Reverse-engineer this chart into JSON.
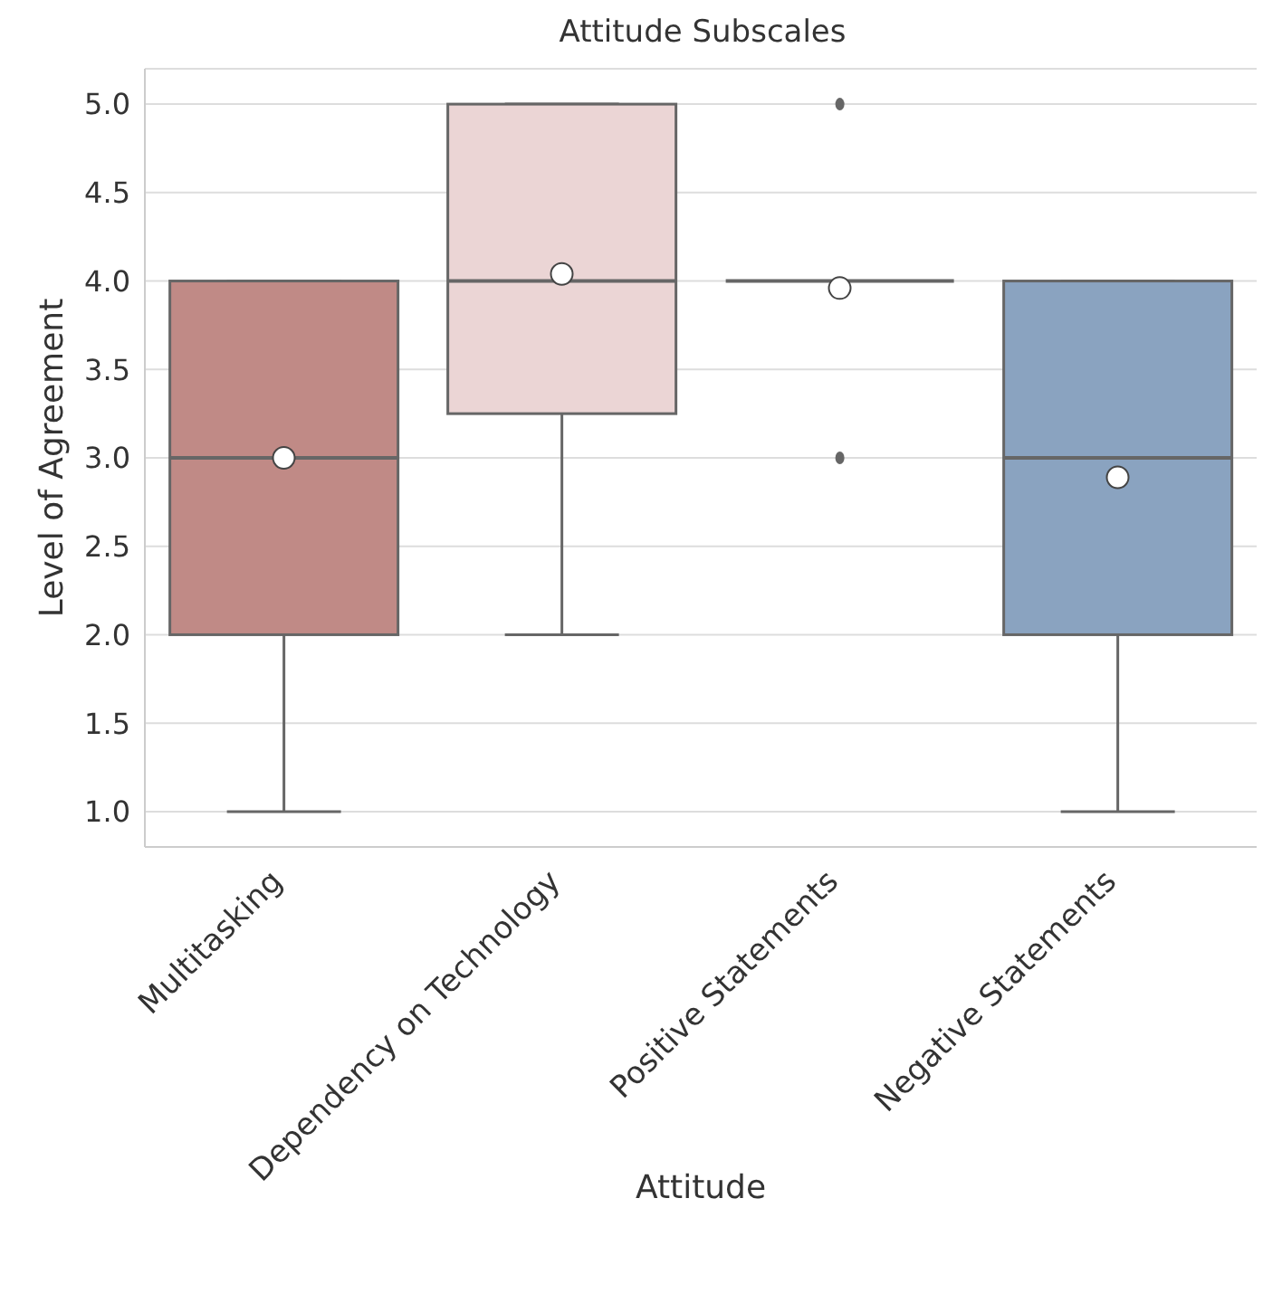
{
  "chart_data": {
    "type": "box",
    "title": "Attitude Subscales",
    "xlabel": "Attitude",
    "ylabel": "Level of Agreement",
    "categories": [
      "Multitasking",
      "Dependency on Technology",
      "Positive Statements",
      "Negative Statements"
    ],
    "colors": [
      "#c08a86",
      "#ebd5d5",
      "#666666",
      "#8aa3c0"
    ],
    "boxes": [
      {
        "low": 1,
        "q1": 2,
        "median": 3,
        "q3": 4,
        "high": 4,
        "mean": 3.0
      },
      {
        "low": 2,
        "q1": 3.25,
        "median": 4,
        "q3": 5,
        "high": 5,
        "mean": 4.04
      },
      {
        "low": 4,
        "q1": 4,
        "median": 4,
        "q3": 4,
        "high": 4,
        "mean": 3.96,
        "outliers": [
          3,
          5
        ]
      },
      {
        "low": 1,
        "q1": 2,
        "median": 3,
        "q3": 4,
        "high": 4,
        "mean": 2.89
      }
    ],
    "ylim": [
      0.8,
      5.2
    ],
    "yticks": [
      {
        "value": 1,
        "label": "1.0"
      },
      {
        "value": 1.5,
        "label": "1.5"
      },
      {
        "value": 2,
        "label": "2.0"
      },
      {
        "value": 2.5,
        "label": "2.5"
      },
      {
        "value": 3,
        "label": "3.0"
      },
      {
        "value": 3.5,
        "label": "3.5"
      },
      {
        "value": 4,
        "label": "4.0"
      },
      {
        "value": 4.5,
        "label": "4.5"
      },
      {
        "value": 5,
        "label": "5.0"
      }
    ],
    "grid": "y",
    "legend": false,
    "marker": "circle"
  }
}
